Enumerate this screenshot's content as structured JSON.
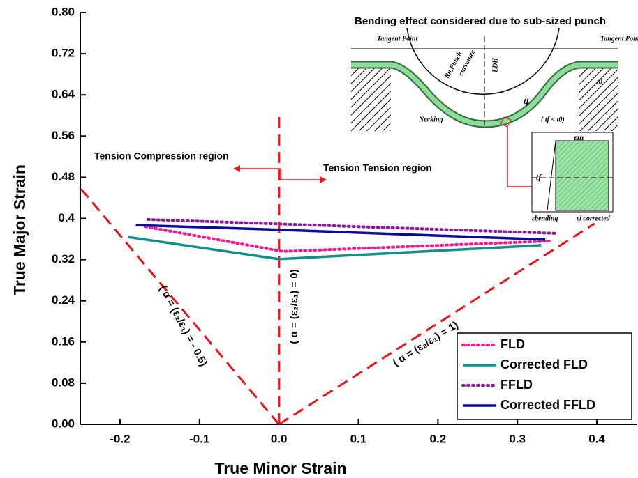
{
  "chart_data": {
    "type": "line",
    "xlabel": "True Minor Strain",
    "ylabel": "True Major Strain",
    "xlim": [
      -0.25,
      0.45
    ],
    "ylim": [
      0,
      0.8
    ],
    "xticks": [
      -0.2,
      -0.1,
      {
        "value": 0,
        "label": "0.0"
      },
      0.1,
      0.2,
      0.3,
      0.4
    ],
    "yticks": [
      {
        "value": 0,
        "label": "0.00"
      },
      0.08,
      0.16,
      0.24,
      0.32,
      0.4,
      0.48,
      0.56,
      0.64,
      0.72,
      {
        "value": 0.8,
        "label": "0.80"
      }
    ],
    "series": [
      {
        "name": "FLD",
        "color": "#ff1493",
        "style": "dotted",
        "x": [
          -0.168,
          0.005,
          0.34
        ],
        "values": [
          0.384,
          0.336,
          0.356
        ]
      },
      {
        "name": "Corrected FLD",
        "color": "#138f87",
        "style": "solid",
        "x": [
          -0.19,
          0.0,
          0.33
        ],
        "values": [
          0.364,
          0.321,
          0.348
        ]
      },
      {
        "name": "FFLD",
        "color": "#8b1a9b",
        "style": "dotted",
        "x": [
          -0.165,
          0.349
        ],
        "values": [
          0.398,
          0.371
        ]
      },
      {
        "name": "Corrected FFLD",
        "color": "#0b0b99",
        "style": "solid",
        "x": [
          -0.18,
          0.0,
          0.335
        ],
        "values": [
          0.387,
          0.378,
          0.359
        ]
      }
    ],
    "reference_lines": [
      {
        "label": "( α = (ε₂/ε₁) = - 0.5)",
        "color": "#e8141b",
        "x": [
          0,
          -0.25
        ],
        "values": [
          0,
          0.459
        ]
      },
      {
        "label": "( α = (ε₂/ε₁) = 0)",
        "color": "#e8141b",
        "x": [
          0,
          0
        ],
        "values": [
          0,
          0.6
        ]
      },
      {
        "label": "( α = (ε₂/ε₁) = 1)",
        "color": "#e8141b",
        "x": [
          0,
          0.397
        ],
        "values": [
          0,
          0.39
        ]
      }
    ],
    "annotations": [
      "Tension Compression region",
      "Tension Tension region"
    ],
    "legend": "lower right",
    "inset": {
      "title": "Bending effect considered due to sub-sized punch",
      "labels": [
        "Tangent Point",
        "Tangent Point",
        "Rn,Punch",
        "curvature",
        "LDH",
        "Necking",
        "tf",
        "( tf < t0)",
        "t0",
        "εm",
        "tf",
        "εbending",
        "εi corrected"
      ]
    }
  }
}
